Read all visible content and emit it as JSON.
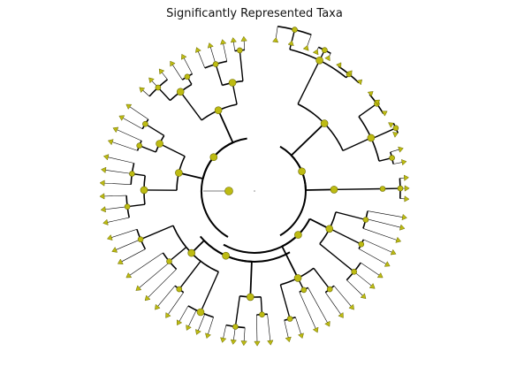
{
  "title": "Significantly Represented Taxa",
  "colors": {
    "background": "#ffffff",
    "node_fill": "#bdbb12",
    "node_stroke": "#6b6a00",
    "edge": "#000000"
  }
}
